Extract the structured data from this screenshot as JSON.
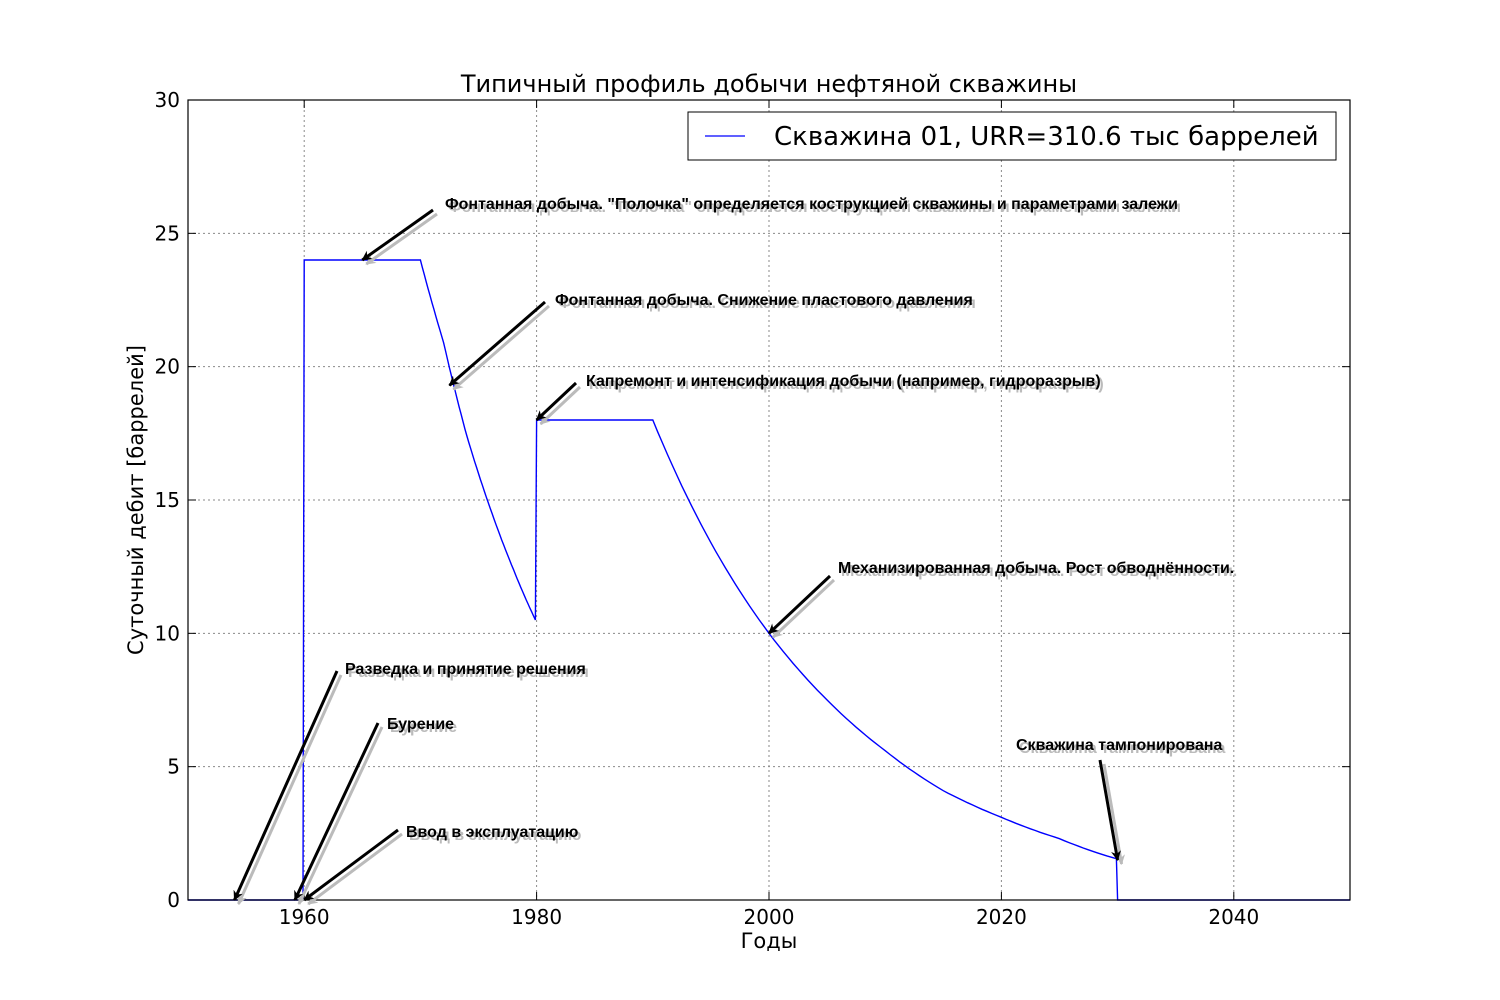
{
  "chart_data": {
    "type": "line",
    "title": "Типичный профиль добычи нефтяной скважины",
    "xlabel": "Годы",
    "ylabel": "Суточный дебит [баррелей]",
    "xlim": [
      1950,
      2050
    ],
    "ylim": [
      0,
      30
    ],
    "xticks": [
      1960,
      1980,
      2000,
      2020,
      2040
    ],
    "yticks": [
      0,
      5,
      10,
      15,
      20,
      25,
      30
    ],
    "grid": true,
    "legend_position": "top-right",
    "colors": {
      "series": "#0000ff"
    },
    "series": [
      {
        "name": "Скважина 01, URR=310.6 тыс баррелей",
        "x": [
          1950,
          1959.9,
          1960,
          1970,
          1972,
          1974,
          1976,
          1978,
          1979.9,
          1980,
          1990,
          1995,
          2000,
          2005,
          2010,
          2015,
          2020,
          2025,
          2029.9,
          2030,
          2050
        ],
        "y": [
          0,
          0,
          24,
          24,
          20.9,
          17.4,
          14.7,
          12.4,
          10.5,
          18,
          18,
          13.4,
          10.0,
          7.5,
          5.6,
          4.1,
          3.1,
          2.3,
          1.55,
          0,
          0
        ]
      }
    ],
    "annotations": [
      {
        "text": "Фонтанная добыча. \"Полочка\" определяется кострукцией скважины и параметрами залежи",
        "x": 1965,
        "y": 24
      },
      {
        "text": "Фонтанная добыча. Снижение пластового давления",
        "x": 1972.5,
        "y": 19.3
      },
      {
        "text": "Капремонт и интенсификация добычи (например, гидроразрыв)",
        "x": 1980,
        "y": 18
      },
      {
        "text": "Механизированная добыча. Рост обводнённости.",
        "x": 2000,
        "y": 10
      },
      {
        "text": "Разведка и принятие решения",
        "x": 1954,
        "y": 0
      },
      {
        "text": "Бурение",
        "x": 1959.2,
        "y": 0
      },
      {
        "text": "Ввод в эксплуатацию",
        "x": 1960,
        "y": 0
      },
      {
        "text": "Скважина тампонирована",
        "x": 2030,
        "y": 1.5
      }
    ]
  }
}
